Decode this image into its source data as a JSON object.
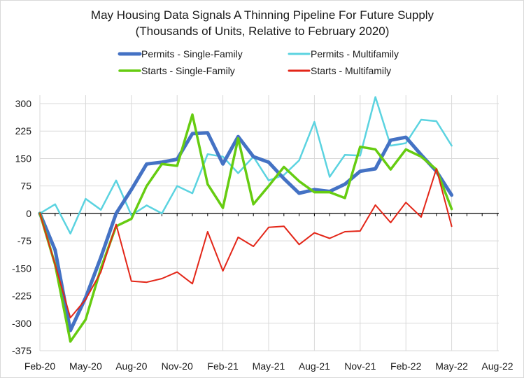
{
  "chart_data": {
    "type": "line",
    "title": "May Housing Data Signals A Thinning  Pipeline For Future Supply",
    "subtitle": "(Thousands of Units, Relative to February 2020)",
    "xlabel": "",
    "ylabel": "",
    "ylim": [
      -375,
      300
    ],
    "yticks": [
      300,
      225,
      150,
      75,
      0,
      -75,
      -150,
      -225,
      -300,
      -375
    ],
    "ytick_labels": [
      "300",
      "225",
      "150",
      "75",
      "0",
      "-75",
      "-150",
      "-225",
      "-300",
      "-375"
    ],
    "xtick_labels": [
      "Feb-20",
      "May-20",
      "Aug-20",
      "Nov-20",
      "Feb-21",
      "May-21",
      "Aug-21",
      "Nov-21",
      "Feb-22",
      "May-22",
      "Aug-22"
    ],
    "x_months_span": 30,
    "grid": true,
    "legend_position": "top",
    "x": [
      "Feb-20",
      "Mar-20",
      "Apr-20",
      "May-20",
      "Jun-20",
      "Jul-20",
      "Aug-20",
      "Sep-20",
      "Oct-20",
      "Nov-20",
      "Dec-20",
      "Jan-21",
      "Feb-21",
      "Mar-21",
      "Apr-21",
      "May-21",
      "Jun-21",
      "Jul-21",
      "Aug-21",
      "Sep-21",
      "Oct-21",
      "Nov-21",
      "Dec-21",
      "Jan-22",
      "Feb-22",
      "Mar-22",
      "Apr-22",
      "May-22"
    ],
    "series": [
      {
        "name": "Permits - Single-Family",
        "color": "#4472c4",
        "width": 5,
        "values": [
          0,
          -100,
          -320,
          -230,
          -120,
          0,
          65,
          135,
          140,
          148,
          218,
          220,
          135,
          210,
          155,
          140,
          95,
          55,
          65,
          60,
          80,
          115,
          122,
          200,
          208,
          160,
          115,
          50
        ]
      },
      {
        "name": "Permits - Multifamily",
        "color": "#5bd3e0",
        "width": 2.5,
        "values": [
          0,
          25,
          -55,
          40,
          10,
          90,
          -5,
          22,
          0,
          75,
          55,
          162,
          155,
          110,
          155,
          90,
          105,
          145,
          250,
          100,
          160,
          158,
          318,
          185,
          192,
          256,
          252,
          185
        ]
      },
      {
        "name": "Starts - Single-Family",
        "color": "#66cc11",
        "width": 3.5,
        "values": [
          0,
          -140,
          -350,
          -290,
          -150,
          -35,
          -15,
          75,
          135,
          130,
          270,
          80,
          15,
          205,
          25,
          75,
          127,
          88,
          58,
          58,
          42,
          182,
          175,
          120,
          175,
          155,
          120,
          12
        ]
      },
      {
        "name": "Starts - Multifamily",
        "color": "#e32618",
        "width": 2,
        "values": [
          0,
          -140,
          -285,
          -235,
          -160,
          -30,
          -185,
          -188,
          -178,
          -160,
          -192,
          -50,
          -157,
          -65,
          -90,
          -38,
          -35,
          -85,
          -53,
          -68,
          -50,
          -48,
          23,
          -25,
          30,
          -10,
          122,
          -35
        ]
      }
    ]
  }
}
